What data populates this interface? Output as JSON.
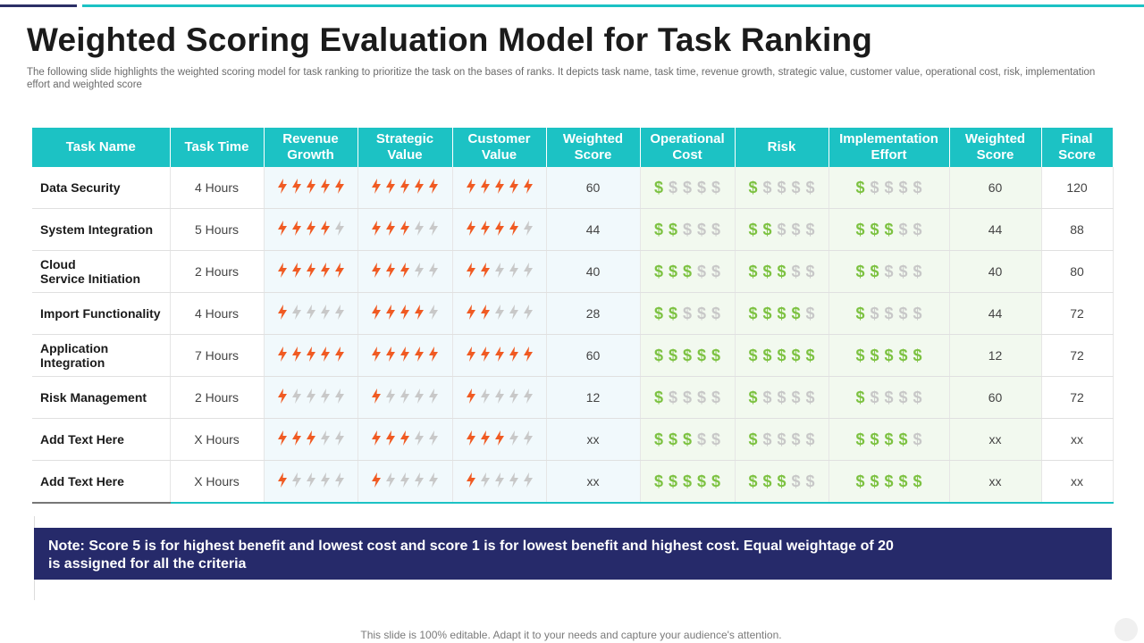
{
  "title": "Weighted Scoring Evaluation Model for Task Ranking",
  "subtitle": "The following slide highlights the weighted scoring model for task ranking to prioritize the task on the bases of ranks. It depicts task name, task time, revenue growth, strategic value, customer value, operational cost, risk, implementation effort and weighted score",
  "table": {
    "headers": [
      "Task Name",
      "Task Time",
      "Revenue Growth",
      "Strategic Value",
      "Customer Value",
      "Weighted Score",
      "Operational Cost",
      "Risk",
      "Implementation Effort",
      "Weighted Score",
      "Final Score"
    ],
    "icon_colors": {
      "bolt_on": "#f05a22",
      "dollar_on": "#7dc242",
      "off": "#c8c8c8"
    },
    "max_icons": 5,
    "rows": [
      {
        "name": "Data Security",
        "time": "4 Hours",
        "revenue_growth": 5,
        "strategic_value": 5,
        "customer_value": 5,
        "benefit_score": "60",
        "operational_cost": 1,
        "risk": 1,
        "implementation_effort": 1,
        "cost_score": "60",
        "final_score": "120"
      },
      {
        "name": "System Integration",
        "time": "5 Hours",
        "revenue_growth": 4,
        "strategic_value": 3,
        "customer_value": 4,
        "benefit_score": "44",
        "operational_cost": 2,
        "risk": 2,
        "implementation_effort": 3,
        "cost_score": "44",
        "final_score": "88"
      },
      {
        "name": "Cloud\nService Initiation",
        "time": "2 Hours",
        "revenue_growth": 5,
        "strategic_value": 3,
        "customer_value": 2,
        "benefit_score": "40",
        "operational_cost": 3,
        "risk": 3,
        "implementation_effort": 2,
        "cost_score": "40",
        "final_score": "80"
      },
      {
        "name": "Import Functionality",
        "time": "4 Hours",
        "revenue_growth": 1,
        "strategic_value": 4,
        "customer_value": 2,
        "benefit_score": "28",
        "operational_cost": 2,
        "risk": 4,
        "implementation_effort": 1,
        "cost_score": "44",
        "final_score": "72"
      },
      {
        "name": "Application\nIntegration",
        "time": "7 Hours",
        "revenue_growth": 5,
        "strategic_value": 5,
        "customer_value": 5,
        "benefit_score": "60",
        "operational_cost": 5,
        "risk": 5,
        "implementation_effort": 5,
        "cost_score": "12",
        "final_score": "72"
      },
      {
        "name": "Risk Management",
        "time": "2 Hours",
        "revenue_growth": 1,
        "strategic_value": 1,
        "customer_value": 1,
        "benefit_score": "12",
        "operational_cost": 1,
        "risk": 1,
        "implementation_effort": 1,
        "cost_score": "60",
        "final_score": "72"
      },
      {
        "name": "Add Text Here",
        "time": "X Hours",
        "revenue_growth": 3,
        "strategic_value": 3,
        "customer_value": 3,
        "benefit_score": "xx",
        "operational_cost": 3,
        "risk": 1,
        "implementation_effort": 4,
        "cost_score": "xx",
        "final_score": "xx"
      },
      {
        "name": "Add Text Here",
        "time": "X Hours",
        "revenue_growth": 1,
        "strategic_value": 1,
        "customer_value": 1,
        "benefit_score": "xx",
        "operational_cost": 5,
        "risk": 3,
        "implementation_effort": 5,
        "cost_score": "xx",
        "final_score": "xx"
      }
    ]
  },
  "note": "Note: Score 5 is for highest benefit and lowest cost and score 1 is for lowest benefit and highest cost. Equal weightage of 20\nis assigned for all the criteria",
  "footer": "This slide is 100% editable. Adapt it to your needs and capture your audience's attention."
}
